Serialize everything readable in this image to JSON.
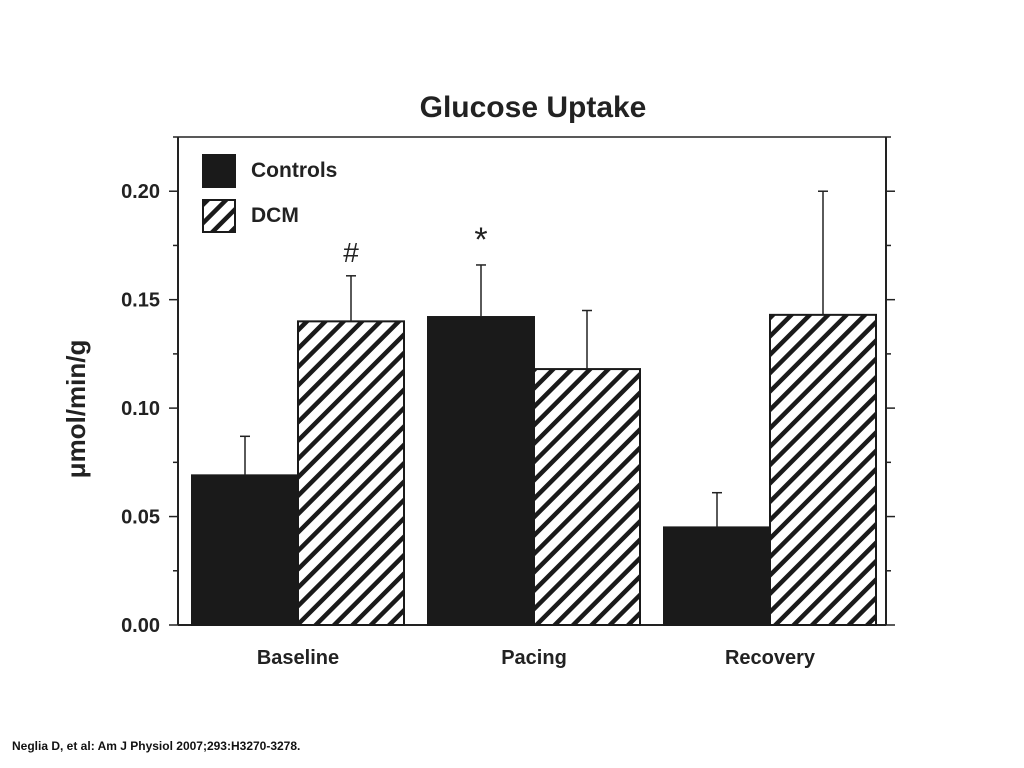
{
  "chart_data": {
    "type": "bar",
    "title": "Glucose Uptake",
    "xlabel": "",
    "ylabel": "μmol/min/g",
    "categories": [
      "Baseline",
      "Pacing",
      "Recovery"
    ],
    "ylim": [
      0,
      0.225
    ],
    "yticks": [
      "0.00",
      "0.05",
      "0.10",
      "0.15",
      "0.20"
    ],
    "ytick_values": [
      0,
      0.05,
      0.1,
      0.15,
      0.2
    ],
    "grid": false,
    "legend_position": "top-left",
    "series": [
      {
        "name": "Controls",
        "fill": "solid",
        "color": "#1a1a1a",
        "values": [
          0.069,
          0.142,
          0.045
        ],
        "errors": [
          0.018,
          0.024,
          0.016
        ]
      },
      {
        "name": "DCM",
        "fill": "hatched",
        "color": "#1a1a1a",
        "values": [
          0.14,
          0.118,
          0.143
        ],
        "errors": [
          0.021,
          0.027,
          0.057
        ]
      }
    ],
    "annotations": [
      {
        "text": "#",
        "category": "Baseline",
        "series": "DCM"
      },
      {
        "text": "*",
        "category": "Pacing",
        "series": "Controls"
      }
    ]
  },
  "citation": "Neglia D, et al: Am J Physiol 2007;293:H3270-3278."
}
